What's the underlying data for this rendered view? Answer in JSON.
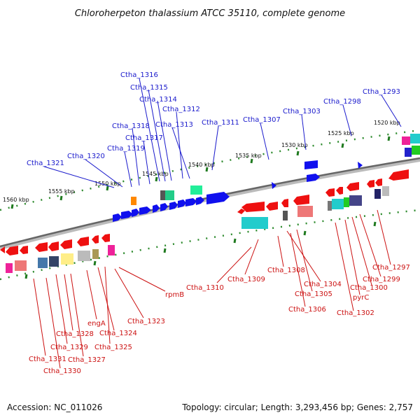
{
  "title": "Chloroherpeton thalassium ATCC 35110, complete genome",
  "footer": {
    "accession": "Accession: NC_011026",
    "summary": "Topology: circular; Length: 3,293,456 bp; Genes: 2,757"
  },
  "colors": {
    "backbone": "#888888",
    "tick_dot": "#2e8b2e",
    "tick_major": "#1f7a1f",
    "label_top": "#1a1acc",
    "label_bottom": "#cc1111",
    "gene_forward": "#1010ee",
    "gene_reverse": "#ee1010"
  },
  "kbp_labels": [
    "1560 kbp",
    "1555 kbp",
    "1550 kbp",
    "1545 kbp",
    "1540 kbp",
    "1535 kbp",
    "1530 kbp",
    "1525 kbp",
    "1520 kbp"
  ],
  "top_labels": [
    "Ctha_1316",
    "Ctha_1315",
    "Ctha_1314",
    "Ctha_1312",
    "Ctha_1318",
    "Ctha_1313",
    "Ctha_1311",
    "Ctha_1307",
    "Ctha_1303",
    "Ctha_1298",
    "Ctha_1293",
    "Ctha_1317",
    "Ctha_1319",
    "Ctha_1320",
    "Ctha_1321"
  ],
  "bottom_labels": [
    "rpmB",
    "Ctha_1310",
    "Ctha_1309",
    "Ctha_1308",
    "Ctha_1297",
    "Ctha_1299",
    "Ctha_1300",
    "Ctha_1304",
    "Ctha_1305",
    "pyrC",
    "Ctha_1306",
    "Ctha_1302",
    "Ctha_1323",
    "engA",
    "Ctha_1324",
    "Ctha_1328",
    "Ctha_1325",
    "Ctha_1329",
    "Ctha_1327",
    "Ctha_1331",
    "Ctha_1330"
  ]
}
